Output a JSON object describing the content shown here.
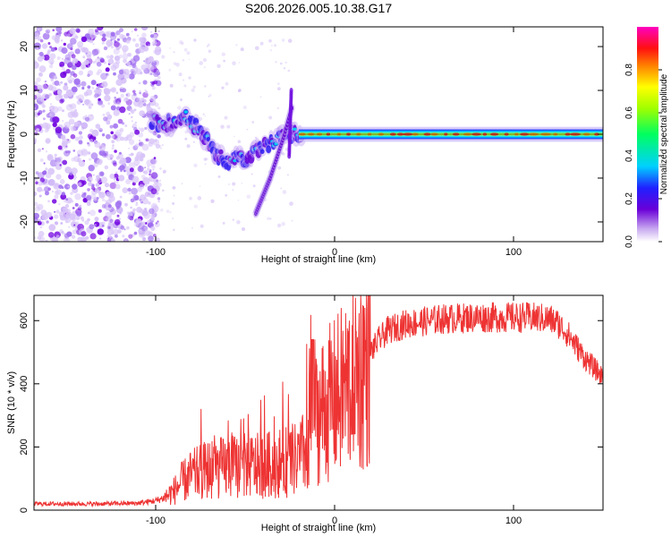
{
  "title": "S206.2026.005.10.38.G17",
  "chart_data": [
    {
      "type": "heatmap",
      "title": "S206.2026.005.10.38.G17",
      "xlabel": "Height of straight line (km)",
      "ylabel": "Frequency (Hz)",
      "xlim": [
        -168,
        150
      ],
      "ylim": [
        -24.5,
        24.5
      ],
      "xticks": [
        -100,
        0,
        100
      ],
      "xtick_labels": [
        "-100",
        "0",
        "100"
      ],
      "yticks": [
        -20,
        -10,
        0,
        10,
        20
      ],
      "ytick_labels": [
        "-20",
        "-10",
        "0",
        "10",
        "20"
      ],
      "colorbar": {
        "label": "Normalized spectral amplitude",
        "range": [
          0,
          1
        ],
        "ticks": [
          0.0,
          0.2,
          0.4,
          0.6,
          0.8
        ],
        "tick_labels": [
          "0.0",
          "0.2",
          "0.4",
          "0.6",
          "0.8"
        ]
      },
      "ridge": {
        "x": [
          -100,
          -95,
          -90,
          -85,
          -80,
          -75,
          -70,
          -65,
          -60,
          -55,
          -50,
          -45,
          -40,
          -35,
          -30,
          -25,
          -20,
          -15,
          -10,
          -5,
          0,
          5,
          10,
          20,
          40,
          60,
          80,
          100,
          120,
          140,
          150
        ],
        "y": [
          3,
          2,
          3,
          4,
          3,
          0,
          -2,
          -5,
          -6,
          -5,
          -6,
          -4,
          -3,
          -2,
          0,
          0,
          0,
          0,
          0,
          0,
          -1,
          -2,
          -1,
          0,
          0,
          0,
          0,
          0,
          0,
          0.5,
          0.5
        ]
      },
      "streak": {
        "x": [
          -44,
          -40,
          -36,
          -32,
          -28,
          -24
        ],
        "y": [
          -18,
          -14,
          -10,
          -5,
          0,
          6
        ]
      }
    },
    {
      "type": "line",
      "xlabel": "Height of straight line (km)",
      "ylabel": "SNR (10 * v/v)",
      "xlim": [
        -168,
        150
      ],
      "ylim": [
        0,
        680
      ],
      "xticks": [
        -100,
        0,
        100
      ],
      "xtick_labels": [
        "-100",
        "0",
        "100"
      ],
      "yticks": [
        0,
        200,
        400,
        600
      ],
      "ytick_labels": [
        "0",
        "200",
        "400",
        "600"
      ],
      "color": "#ee3333",
      "envelope": {
        "x": [
          -168,
          -150,
          -130,
          -110,
          -100,
          -95,
          -90,
          -85,
          -80,
          -70,
          -60,
          -50,
          -40,
          -30,
          -20,
          -15,
          -12,
          -10,
          -5,
          0,
          5,
          10,
          15,
          20,
          25,
          30,
          40,
          60,
          80,
          100,
          110,
          120,
          125,
          130,
          135,
          140,
          145,
          150
        ],
        "y": [
          20,
          20,
          20,
          22,
          30,
          40,
          60,
          90,
          110,
          130,
          135,
          140,
          140,
          150,
          160,
          200,
          250,
          300,
          330,
          350,
          380,
          420,
          450,
          500,
          540,
          570,
          590,
          605,
          610,
          610,
          610,
          605,
          590,
          560,
          520,
          480,
          450,
          420
        ]
      }
    }
  ]
}
